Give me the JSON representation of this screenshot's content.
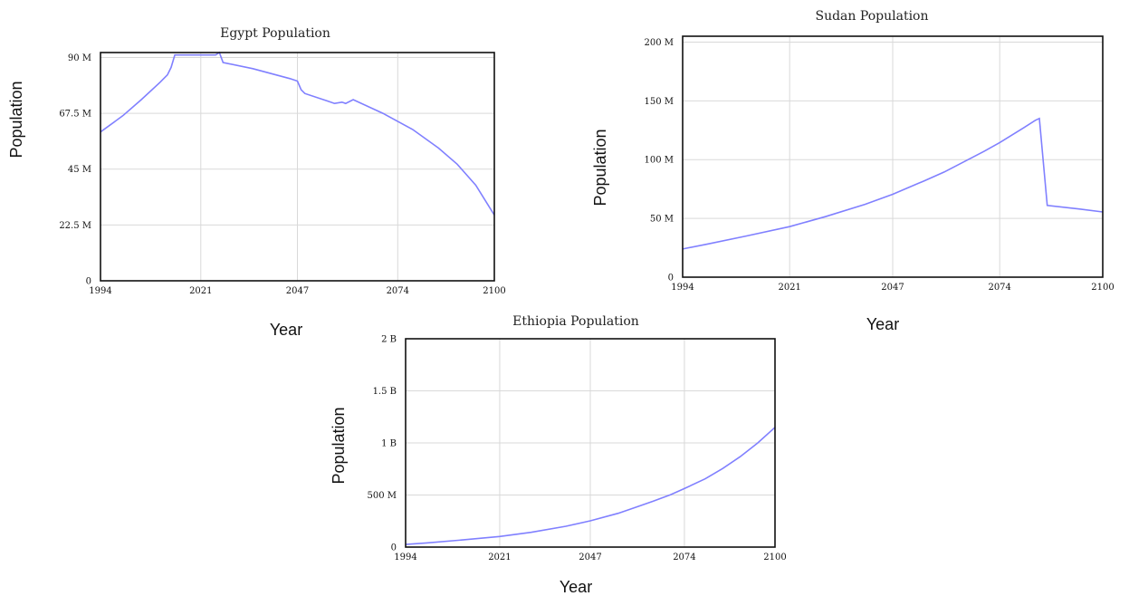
{
  "chart_data": [
    {
      "type": "line",
      "title": "Egypt Population",
      "xlabel": "Year",
      "ylabel": "Population",
      "xlim": [
        1994,
        2100
      ],
      "ylim": [
        0,
        92
      ],
      "grid": true,
      "x_ticks": [
        "1994",
        "2021",
        "2047",
        "2074",
        "2100"
      ],
      "x_tick_values": [
        1994,
        2021,
        2047,
        2074,
        2100
      ],
      "y_ticks": [
        "0",
        "22.5 M",
        "45 M",
        "67.5 M",
        "90 M"
      ],
      "y_tick_values": [
        0,
        22.5,
        45,
        67.5,
        90
      ],
      "series": [
        {
          "color": "#8080ff",
          "points": [
            [
              1994,
              60
            ],
            [
              2000,
              66.5
            ],
            [
              2005,
              73
            ],
            [
              2010,
              80
            ],
            [
              2012,
              83
            ],
            [
              2013,
              86
            ],
            [
              2014,
              91
            ],
            [
              2020,
              91
            ],
            [
              2025,
              91
            ],
            [
              2026,
              92
            ],
            [
              2027,
              88
            ],
            [
              2035,
              85.5
            ],
            [
              2045,
              81.5
            ],
            [
              2047,
              80.5
            ],
            [
              2048,
              77
            ],
            [
              2049,
              75.5
            ],
            [
              2055,
              72.5
            ],
            [
              2057,
              71.5
            ],
            [
              2059,
              72
            ],
            [
              2060,
              71.5
            ],
            [
              2062,
              73
            ],
            [
              2070,
              67.5
            ],
            [
              2078,
              61
            ],
            [
              2085,
              53.5
            ],
            [
              2090,
              47
            ],
            [
              2095,
              38.5
            ],
            [
              2100,
              26.5
            ]
          ]
        }
      ]
    },
    {
      "type": "line",
      "title": "Sudan Population",
      "xlabel": "Year",
      "ylabel": "Population",
      "xlim": [
        1994,
        2100
      ],
      "ylim": [
        0,
        205
      ],
      "grid": true,
      "x_ticks": [
        "1994",
        "2021",
        "2047",
        "2074",
        "2100"
      ],
      "x_tick_values": [
        1994,
        2021,
        2047,
        2074,
        2100
      ],
      "y_ticks": [
        "0",
        "50 M",
        "100 M",
        "150 M",
        "200 M"
      ],
      "y_tick_values": [
        0,
        50,
        100,
        150,
        200
      ],
      "series": [
        {
          "color": "#8080ff",
          "points": [
            [
              1994,
              24
            ],
            [
              2000,
              28
            ],
            [
              2010,
              35
            ],
            [
              2021,
              43
            ],
            [
              2030,
              51.5
            ],
            [
              2040,
              62
            ],
            [
              2047,
              70.5
            ],
            [
              2055,
              82
            ],
            [
              2060,
              89.5
            ],
            [
              2070,
              107
            ],
            [
              2074,
              114.5
            ],
            [
              2080,
              127
            ],
            [
              2083,
              133.5
            ],
            [
              2084,
              135
            ],
            [
              2086,
              61
            ],
            [
              2094,
              58
            ],
            [
              2100,
              55.5
            ]
          ]
        }
      ]
    },
    {
      "type": "line",
      "title": "Ethiopia Population",
      "xlabel": "Year",
      "ylabel": "Population",
      "xlim": [
        1994,
        2100
      ],
      "ylim": [
        0,
        2000
      ],
      "grid": true,
      "x_ticks": [
        "1994",
        "2021",
        "2047",
        "2074",
        "2100"
      ],
      "x_tick_values": [
        1994,
        2021,
        2047,
        2074,
        2100
      ],
      "y_ticks": [
        "0",
        "500 M",
        "1 B",
        "1.5 B",
        "2 B"
      ],
      "y_tick_values": [
        0,
        500,
        1000,
        1500,
        2000
      ],
      "series": [
        {
          "color": "#8080ff",
          "points": [
            [
              1994,
              25
            ],
            [
              2000,
              40
            ],
            [
              2010,
              68
            ],
            [
              2021,
              102
            ],
            [
              2030,
              142
            ],
            [
              2040,
              200
            ],
            [
              2047,
              252
            ],
            [
              2055,
              324
            ],
            [
              2060,
              382
            ],
            [
              2065,
              440
            ],
            [
              2070,
              503
            ],
            [
              2074,
              562
            ],
            [
              2080,
              656
            ],
            [
              2085,
              755
            ],
            [
              2090,
              868
            ],
            [
              2095,
              999
            ],
            [
              2100,
              1150
            ]
          ]
        }
      ]
    }
  ]
}
